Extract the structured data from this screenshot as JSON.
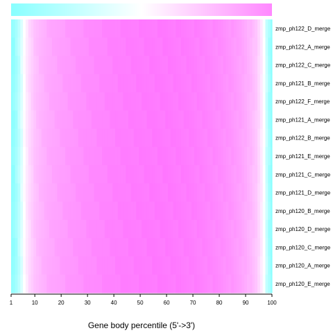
{
  "chart_data": {
    "type": "heatmap",
    "title": "",
    "xlabel": "Gene body percentile (5'->3')",
    "ylabel": "",
    "xlim": [
      1,
      100
    ],
    "x_ticks": [
      1,
      10,
      20,
      30,
      40,
      50,
      60,
      70,
      80,
      90,
      100
    ],
    "color_low": "#00ffff",
    "color_mid": "#ffffff",
    "color_high": "#ff00ff",
    "color_scale_bar": "top",
    "rows": [
      "zmp_ph122_D_merge",
      "zmp_ph122_A_merge",
      "zmp_ph122_C_merge",
      "zmp_ph121_B_merge",
      "zmp_ph122_F_merge",
      "zmp_ph121_A_merge",
      "zmp_ph122_B_merge",
      "zmp_ph121_E_merge",
      "zmp_ph121_C_merge",
      "zmp_ph121_D_merge",
      "zmp_ph120_B_merge",
      "zmp_ph120_D_merge",
      "zmp_ph120_C_merge",
      "zmp_ph120_A_merge",
      "zmp_ph120_E_merge"
    ],
    "coverage_profile": {
      "x": [
        1,
        2,
        3,
        4,
        5,
        6,
        7,
        8,
        9,
        10,
        12,
        15,
        20,
        25,
        30,
        35,
        40,
        45,
        50,
        55,
        60,
        65,
        70,
        75,
        80,
        85,
        88,
        90,
        92,
        94,
        95,
        96,
        97,
        98,
        99,
        100
      ],
      "z": [
        0.0,
        0.02,
        0.06,
        0.12,
        0.2,
        0.3,
        0.4,
        0.48,
        0.54,
        0.6,
        0.66,
        0.72,
        0.78,
        0.83,
        0.87,
        0.9,
        0.93,
        0.95,
        0.96,
        0.97,
        0.97,
        0.96,
        0.95,
        0.92,
        0.88,
        0.82,
        0.77,
        0.72,
        0.66,
        0.58,
        0.5,
        0.4,
        0.28,
        0.15,
        0.06,
        0.0
      ]
    }
  }
}
